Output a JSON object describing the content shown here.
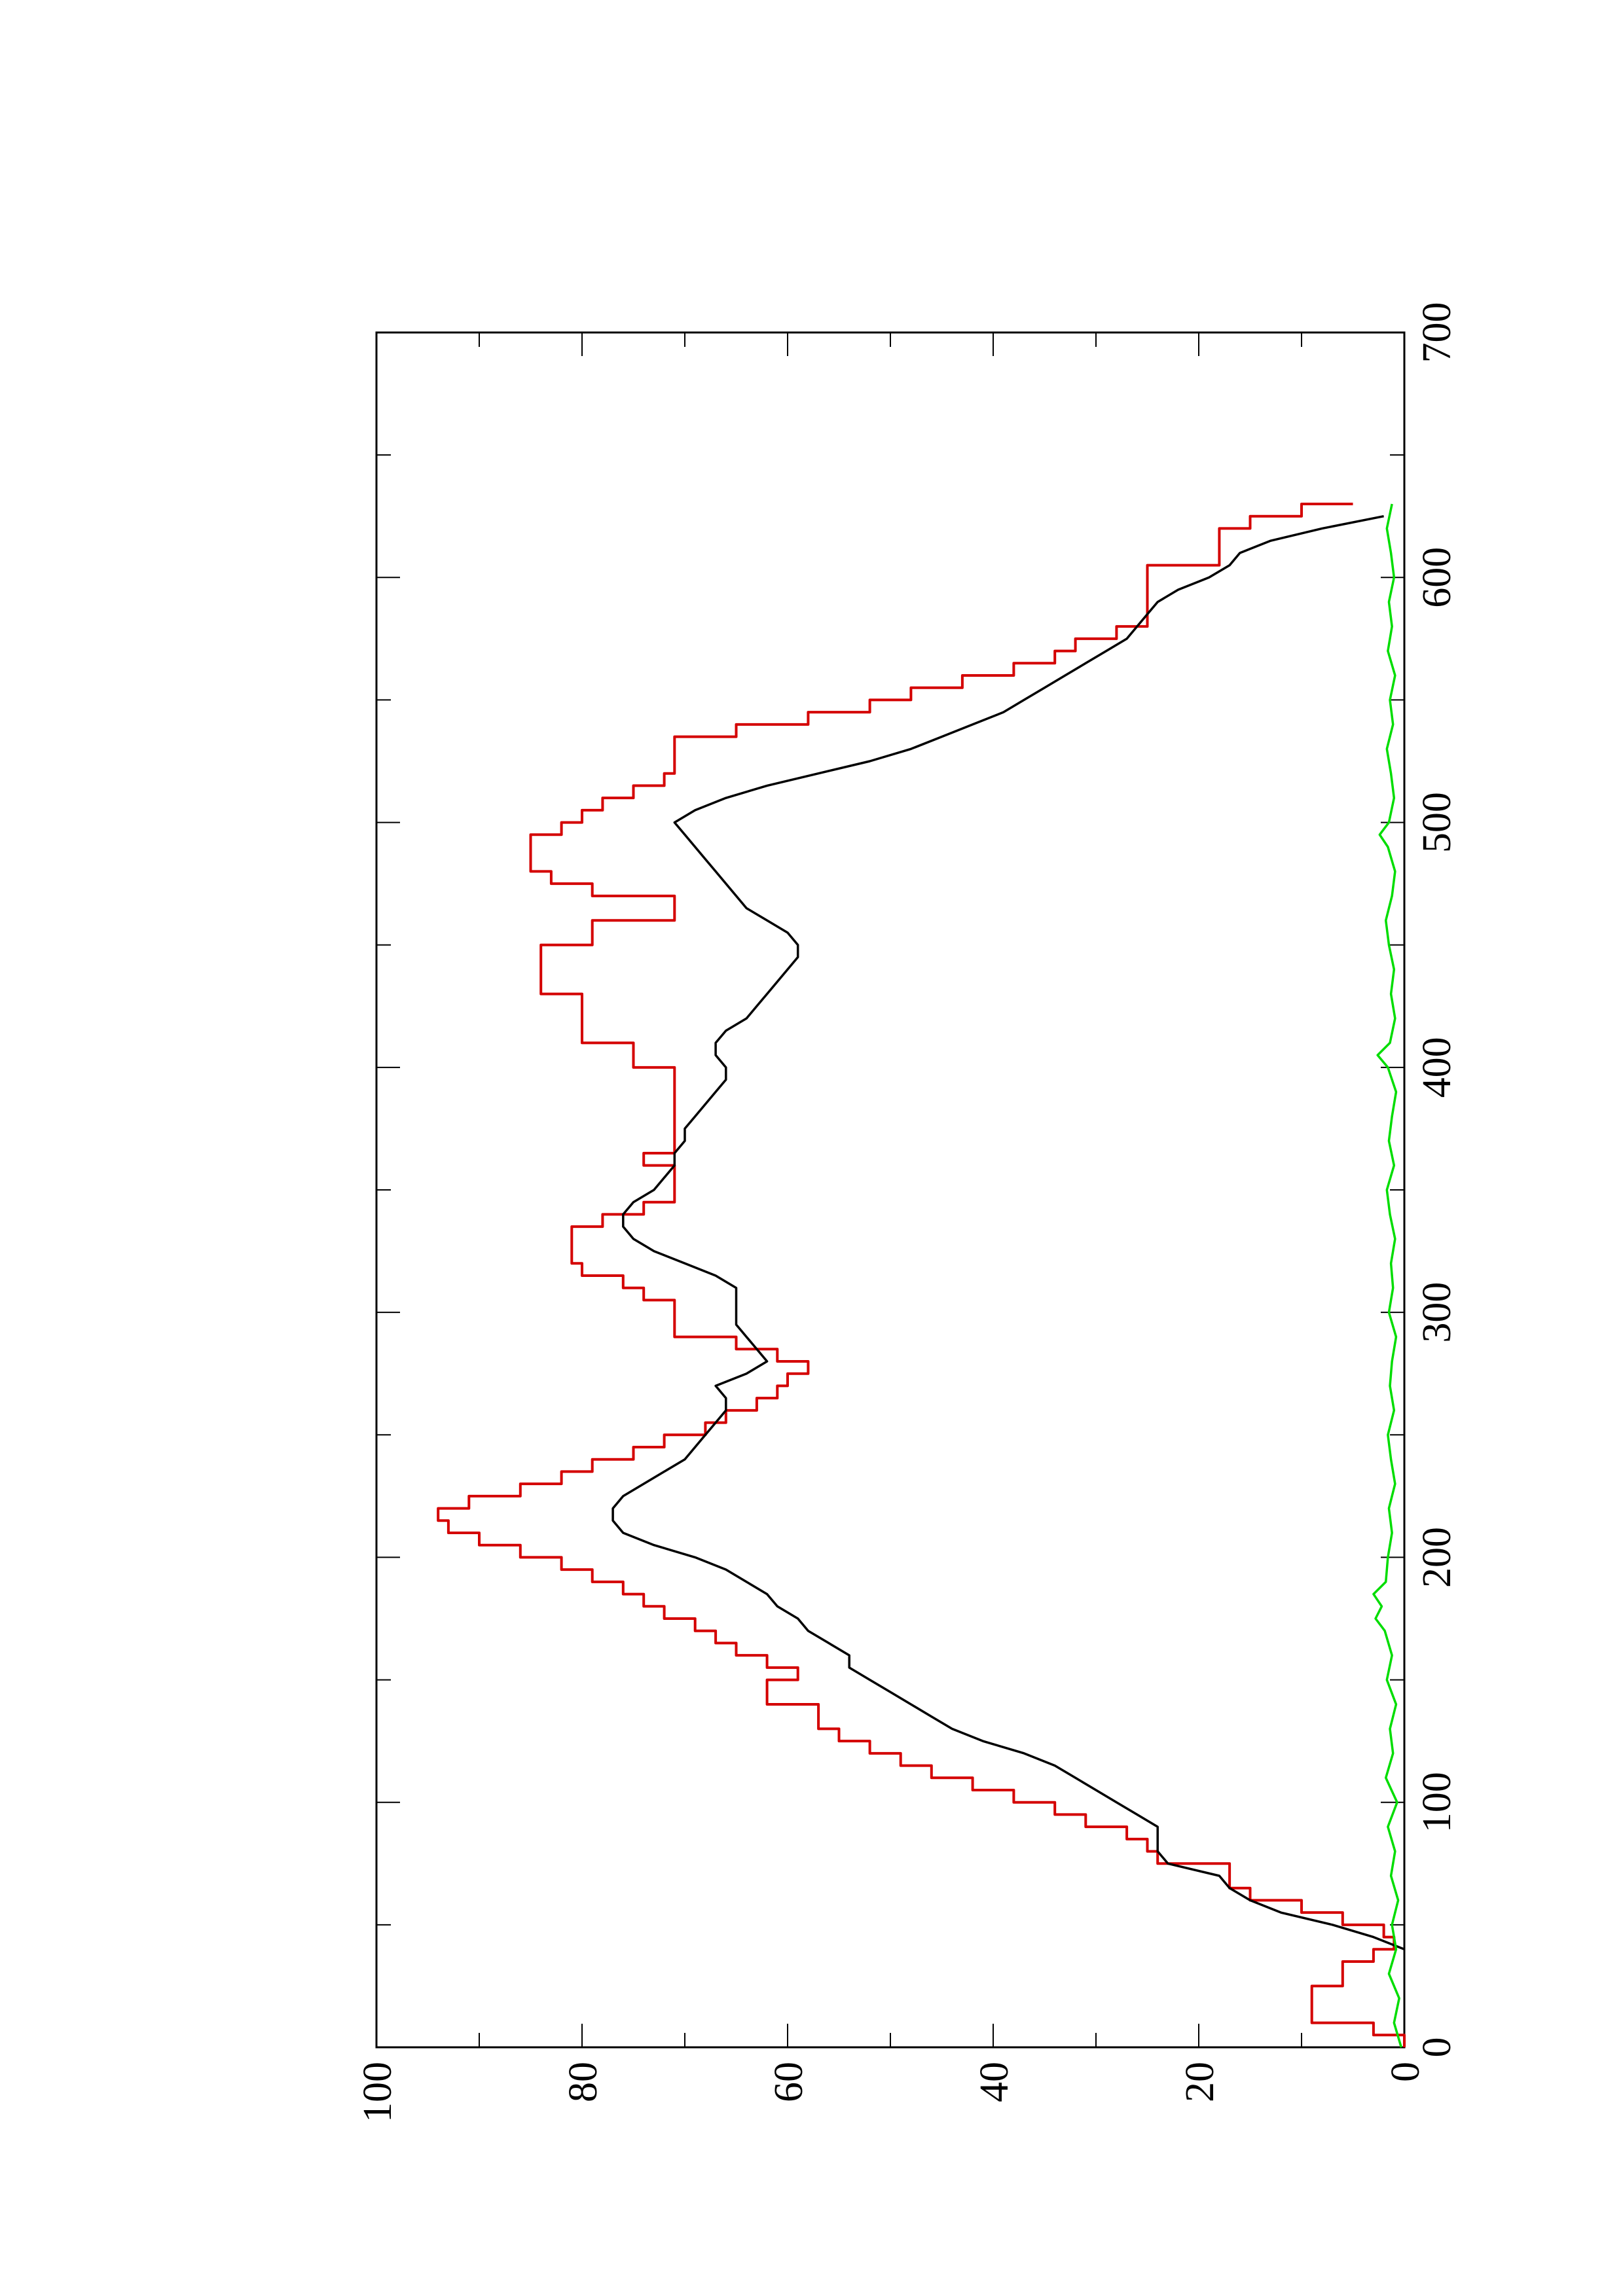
{
  "chart_data": {
    "type": "line",
    "orientation": "rotated-90-ccw",
    "title": "",
    "xlabel": "",
    "ylabel": "",
    "xlim": [
      0,
      700
    ],
    "ylim": [
      0,
      100
    ],
    "x_ticks": [
      "0",
      "100",
      "200",
      "300",
      "400",
      "500",
      "600",
      "700"
    ],
    "y_ticks": [
      "0",
      "20",
      "40",
      "60",
      "80",
      "100"
    ],
    "x_minor_step": 50,
    "y_minor_step": 10,
    "grid": false,
    "legend": "none",
    "series": [
      {
        "color": "#d40000",
        "style": "step",
        "x": [
          0,
          5,
          10,
          15,
          20,
          25,
          30,
          35,
          40,
          45,
          50,
          55,
          60,
          65,
          75,
          80,
          85,
          90,
          95,
          100,
          105,
          110,
          115,
          120,
          125,
          130,
          135,
          140,
          145,
          150,
          155,
          160,
          165,
          170,
          175,
          180,
          185,
          190,
          195,
          200,
          205,
          210,
          215,
          220,
          225,
          230,
          235,
          240,
          245,
          250,
          255,
          260,
          265,
          270,
          275,
          280,
          285,
          290,
          300,
          305,
          310,
          315,
          320,
          330,
          335,
          340,
          345,
          350,
          355,
          360,
          365,
          370,
          380,
          400,
          410,
          420,
          430,
          440,
          450,
          455,
          460,
          465,
          470,
          475,
          480,
          485,
          490,
          495,
          500,
          505,
          510,
          515,
          520,
          525,
          530,
          535,
          540,
          545,
          550,
          555,
          560,
          565,
          570,
          575,
          580,
          585,
          590,
          600,
          605,
          610,
          615,
          620,
          625,
          630
        ],
        "y": [
          0,
          3,
          9,
          9,
          9,
          6,
          6,
          3,
          1,
          2,
          6,
          10,
          15,
          17,
          24,
          25,
          27,
          31,
          34,
          38,
          42,
          46,
          49,
          52,
          55,
          57,
          57,
          62,
          62,
          59,
          62,
          65,
          67,
          69,
          72,
          74,
          76,
          79,
          82,
          86,
          90,
          93,
          94,
          91,
          86,
          82,
          79,
          75,
          72,
          68,
          66,
          63,
          61,
          60,
          58,
          61,
          65,
          71,
          71,
          74,
          76,
          80,
          81,
          81,
          78,
          74,
          71,
          71,
          71,
          74,
          71,
          71,
          71,
          75,
          80,
          80,
          84,
          84,
          79,
          79,
          71,
          71,
          79,
          83,
          85,
          85,
          85,
          82,
          80,
          78,
          75,
          72,
          71,
          71,
          71,
          65,
          58,
          52,
          48,
          43,
          38,
          34,
          32,
          28,
          25,
          25,
          25,
          25,
          18,
          18,
          18,
          15,
          10,
          5
        ]
      },
      {
        "color": "#000000",
        "style": "line",
        "x": [
          40,
          45,
          50,
          55,
          60,
          65,
          70,
          75,
          80,
          85,
          90,
          95,
          100,
          105,
          110,
          115,
          120,
          125,
          130,
          135,
          140,
          145,
          150,
          155,
          160,
          165,
          170,
          175,
          180,
          185,
          190,
          195,
          200,
          205,
          210,
          215,
          220,
          225,
          230,
          235,
          240,
          245,
          250,
          255,
          260,
          265,
          270,
          275,
          280,
          285,
          290,
          295,
          300,
          305,
          310,
          315,
          320,
          325,
          330,
          335,
          340,
          345,
          350,
          355,
          360,
          365,
          370,
          375,
          380,
          385,
          390,
          395,
          400,
          405,
          410,
          415,
          420,
          425,
          430,
          435,
          440,
          445,
          450,
          455,
          460,
          465,
          470,
          475,
          480,
          485,
          490,
          495,
          500,
          505,
          510,
          515,
          520,
          525,
          530,
          535,
          540,
          545,
          550,
          555,
          560,
          565,
          570,
          575,
          580,
          585,
          590,
          595,
          600,
          605,
          610,
          615,
          620,
          625
        ],
        "y": [
          0,
          3,
          7,
          12,
          15,
          17,
          18,
          23,
          24,
          24,
          24,
          26,
          28,
          30,
          32,
          34,
          37,
          41,
          44,
          46,
          48,
          50,
          52,
          54,
          54,
          56,
          58,
          59,
          61,
          62,
          64,
          66,
          69,
          73,
          76,
          77,
          77,
          76,
          74,
          72,
          70,
          69,
          68,
          67,
          66,
          66,
          67,
          64,
          62,
          63,
          64,
          65,
          65,
          65,
          65,
          67,
          70,
          73,
          75,
          76,
          76,
          75,
          73,
          72,
          71,
          71,
          70,
          70,
          69,
          68,
          67,
          66,
          66,
          67,
          67,
          66,
          64,
          63,
          62,
          61,
          60,
          59,
          59,
          60,
          62,
          64,
          65,
          66,
          67,
          68,
          69,
          70,
          71,
          69,
          66,
          62,
          57,
          52,
          48,
          45,
          42,
          39,
          37,
          35,
          33,
          31,
          29,
          27,
          26,
          25,
          24,
          22,
          19,
          17,
          16,
          13,
          8,
          2
        ]
      },
      {
        "color": "#00dd00",
        "style": "line",
        "x": [
          0,
          10,
          20,
          30,
          40,
          50,
          60,
          70,
          80,
          90,
          100,
          110,
          120,
          130,
          140,
          150,
          160,
          170,
          175,
          180,
          185,
          190,
          200,
          210,
          220,
          230,
          240,
          250,
          260,
          270,
          280,
          290,
          300,
          310,
          320,
          330,
          340,
          350,
          360,
          370,
          380,
          390,
          400,
          405,
          410,
          420,
          430,
          440,
          450,
          460,
          470,
          480,
          490,
          495,
          500,
          510,
          520,
          530,
          540,
          550,
          560,
          570,
          580,
          590,
          600,
          610,
          620,
          630
        ],
        "y": [
          0.3,
          1.0,
          0.5,
          1.5,
          0.8,
          1.2,
          0.6,
          1.3,
          0.9,
          1.6,
          0.7,
          1.8,
          1.1,
          1.4,
          0.8,
          1.7,
          1.2,
          1.9,
          2.8,
          2.2,
          3.0,
          1.8,
          1.6,
          1.2,
          1.5,
          0.9,
          1.3,
          1.6,
          1.0,
          1.4,
          1.2,
          0.8,
          1.5,
          1.1,
          1.3,
          0.9,
          1.4,
          1.7,
          1.0,
          1.5,
          1.2,
          0.8,
          1.6,
          2.6,
          1.4,
          0.9,
          1.3,
          1.0,
          1.5,
          1.8,
          1.2,
          0.9,
          1.6,
          2.4,
          1.5,
          1.0,
          1.3,
          1.7,
          1.1,
          1.4,
          0.9,
          1.6,
          1.2,
          1.5,
          1.0,
          1.3,
          1.7,
          1.2
        ]
      }
    ]
  }
}
